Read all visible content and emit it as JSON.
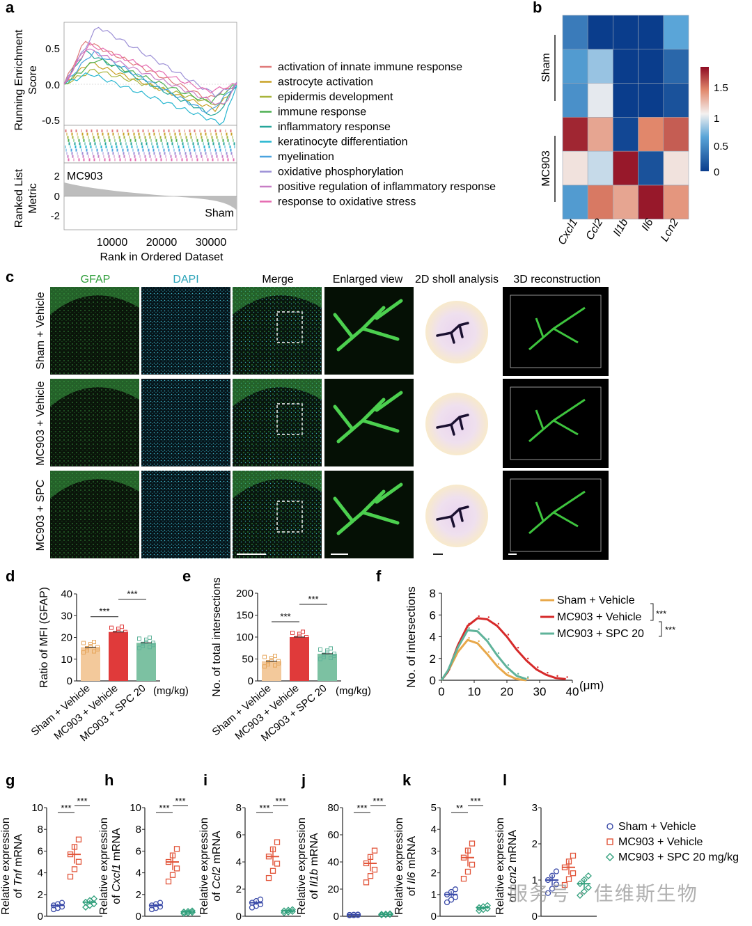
{
  "panel_letters": [
    "a",
    "b",
    "c",
    "d",
    "e",
    "f",
    "g",
    "h",
    "i",
    "j",
    "k",
    "l"
  ],
  "panel_a": {
    "ylabel_top": [
      "Running Enrichment",
      "Score"
    ],
    "ylabel_bottom": [
      "Ranked List",
      "Metric"
    ],
    "xlabel": "Rank in Ordered Dataset",
    "y_ticks_top": [
      "0.5",
      "0.0",
      "-0.5"
    ],
    "y_ticks_bottom": [
      "2",
      "0",
      "-2"
    ],
    "x_ticks": [
      "10000",
      "20000",
      "30000"
    ],
    "annot_top": "MC903",
    "annot_bottom": "Sham",
    "legend": [
      {
        "label": "activation of innate immune response",
        "color": "#e07a7a"
      },
      {
        "label": "astrocyte activation",
        "color": "#c9a227"
      },
      {
        "label": "epidermis development",
        "color": "#a8b43a"
      },
      {
        "label": "immune response",
        "color": "#4caf50"
      },
      {
        "label": "inflammatory response",
        "color": "#26a69a"
      },
      {
        "label": "keratinocyte differentiation",
        "color": "#26b6d0"
      },
      {
        "label": "myelination",
        "color": "#4aa3df"
      },
      {
        "label": "oxidative phosphorylation",
        "color": "#9c8fd6"
      },
      {
        "label": "positive regulation of inflammatory response",
        "color": "#c77dc5"
      },
      {
        "label": "response to oxidative stress",
        "color": "#e56bb0"
      }
    ]
  },
  "panel_b": {
    "genes": [
      "Cxcl1",
      "Ccl2",
      "Il1b",
      "Il6",
      "Lcn2"
    ],
    "groups": [
      "Sham",
      "MC903"
    ],
    "colorbar_ticks": [
      "1.5",
      "1",
      "0.5",
      "0"
    ],
    "matrix": [
      [
        0.3,
        0.0,
        0.0,
        0.0,
        0.5
      ],
      [
        0.45,
        0.7,
        0.0,
        0.0,
        0.2
      ],
      [
        0.4,
        0.95,
        0.0,
        0.0,
        0.1
      ],
      [
        1.7,
        1.25,
        0.05,
        1.35,
        1.5
      ],
      [
        1.05,
        0.85,
        1.75,
        0.1,
        1.05
      ],
      [
        0.45,
        1.4,
        1.25,
        1.75,
        1.3
      ]
    ]
  },
  "panel_c": {
    "col_headers": [
      "GFAP",
      "DAPI",
      "Merge",
      "Enlarged view",
      "2D sholl analysis",
      "3D reconstruction"
    ],
    "row_labels": [
      "Sham + Vehicle",
      "MC903 + Vehicle",
      "MC903 + SPC"
    ],
    "header_colors": [
      "#2e9e3a",
      "#2aa3b8",
      "#222222",
      "#222222",
      "#222222",
      "#222222"
    ]
  },
  "panel_d": {
    "ylabel": "Ratio of MFI (GFAP)",
    "unit": "(mg/kg)",
    "sig": [
      "***",
      "***"
    ],
    "chart_data": {
      "type": "bar",
      "categories": [
        "Sham + Vehicle",
        "MC903 + Vehicle",
        "MC903 + SPC 20"
      ],
      "values": [
        15.5,
        22.5,
        17.5
      ],
      "ylim": [
        0,
        40
      ],
      "yticks": [
        0,
        10,
        20,
        30,
        40
      ],
      "colors": [
        "#f3c99b",
        "#e03a3a",
        "#7cc1a2"
      ]
    }
  },
  "panel_e": {
    "ylabel": "No. of total intersections",
    "unit": "(mg/kg)",
    "sig": [
      "***",
      "***"
    ],
    "chart_data": {
      "type": "bar",
      "categories": [
        "Sham + Vehicle",
        "MC903 + Vehicle",
        "MC903 + SPC 20"
      ],
      "values": [
        45,
        100,
        62
      ],
      "ylim": [
        0,
        200
      ],
      "yticks": [
        0,
        50,
        100,
        150,
        200
      ],
      "colors": [
        "#f3c99b",
        "#e03a3a",
        "#7cc1a2"
      ]
    }
  },
  "panel_f": {
    "ylabel": "No. of intersections",
    "unit": "(μm)",
    "sig": [
      "***",
      "***"
    ],
    "chart_data": {
      "type": "line",
      "x_ticks": [
        0,
        10,
        20,
        30,
        40
      ],
      "ylim": [
        0,
        8
      ],
      "yticks": [
        0,
        2,
        4,
        6,
        8
      ],
      "series": [
        {
          "name": "Sham + Vehicle",
          "color": "#e8a84a",
          "x": [
            2,
            5,
            8,
            11,
            14,
            17,
            20,
            23,
            26
          ],
          "y": [
            0.8,
            2.6,
            3.7,
            3.4,
            2.4,
            1.3,
            0.5,
            0.1,
            0
          ]
        },
        {
          "name": "MC903 + Vehicle",
          "color": "#d62a2a",
          "x": [
            2,
            5,
            8,
            11,
            14,
            17,
            20,
            23,
            26,
            29,
            32,
            35,
            38
          ],
          "y": [
            0.8,
            3.2,
            5.0,
            5.7,
            5.6,
            5.0,
            4.0,
            2.8,
            1.8,
            1.0,
            0.5,
            0.2,
            0.1
          ]
        },
        {
          "name": "MC903 + SPC 20",
          "color": "#5fb39a",
          "x": [
            2,
            5,
            8,
            11,
            14,
            17,
            20,
            23,
            26
          ],
          "y": [
            0.9,
            3.0,
            4.6,
            4.5,
            3.6,
            2.3,
            1.2,
            0.4,
            0.1
          ]
        }
      ]
    }
  },
  "qpcr": [
    {
      "letter": "g",
      "gene": "Tnf",
      "ylim": [
        0,
        10
      ],
      "yticks": [
        "0",
        "2",
        "4",
        "6",
        "8",
        "10"
      ],
      "means": [
        1,
        5.7,
        1.3
      ],
      "sig": [
        "***",
        "***"
      ]
    },
    {
      "letter": "h",
      "gene": "Cxcl1",
      "ylim": [
        0,
        10
      ],
      "yticks": [
        "0",
        "2",
        "4",
        "6",
        "8",
        "10"
      ],
      "means": [
        1,
        5.0,
        0.4
      ],
      "sig": [
        "***",
        "***"
      ]
    },
    {
      "letter": "i",
      "gene": "Ccl2",
      "ylim": [
        0,
        8
      ],
      "yticks": [
        "0",
        "2",
        "4",
        "6",
        "8"
      ],
      "means": [
        1,
        4.4,
        0.4
      ],
      "sig": [
        "***",
        "***"
      ]
    },
    {
      "letter": "j",
      "gene": "Il1b",
      "ylim": [
        0,
        80
      ],
      "yticks": [
        "0",
        "20",
        "40",
        "60",
        "80"
      ],
      "means": [
        1,
        39,
        1.5
      ],
      "sig": [
        "***",
        "***"
      ]
    },
    {
      "letter": "k",
      "gene": "Il6",
      "ylim": [
        0,
        5
      ],
      "yticks": [
        "0",
        "1",
        "2",
        "3",
        "4",
        "5"
      ],
      "means": [
        1,
        2.7,
        0.4
      ],
      "sig": [
        "**",
        "***"
      ]
    },
    {
      "letter": "l",
      "gene": "Lcn2",
      "ylim": [
        0,
        3
      ],
      "yticks": [
        "0",
        "1",
        "2",
        "3"
      ],
      "means": [
        1,
        1.35,
        0.9
      ],
      "sig": []
    }
  ],
  "qpcr_ylabel_prefix": "Relative expression",
  "qpcr_ylabel_of": "of",
  "qpcr_ylabel_suffix": "mRNA",
  "qpcr_legend": [
    {
      "label": "Sham + Vehicle",
      "color": "#3a4aa8",
      "marker": "circle"
    },
    {
      "label": "MC903 + Vehicle",
      "color": "#e2553a",
      "marker": "square"
    },
    {
      "label": "MC903 + SPC 20 mg/kg",
      "color": "#2e9e7a",
      "marker": "diamond"
    }
  ],
  "watermark": "服务号 · 佳维斯生物"
}
